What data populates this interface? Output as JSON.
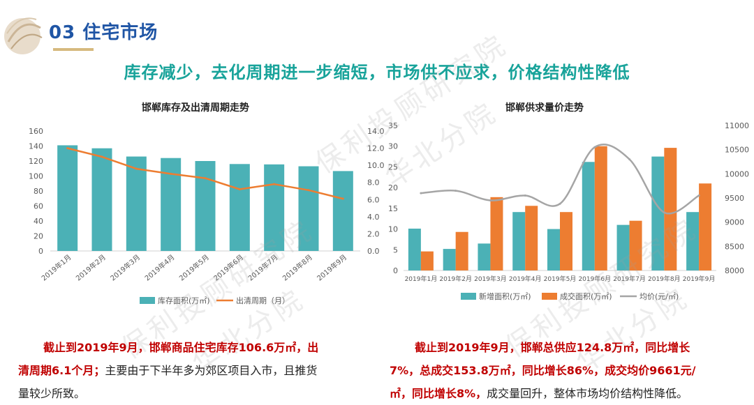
{
  "header": {
    "section_title": "03 住宅市场",
    "headline": "库存减少，去化周期进一步缩短，市场供不应求，价格结构性降低"
  },
  "watermark": {
    "line1": "保利投顾研究院",
    "line2": "华北分院"
  },
  "colors": {
    "teal": "#4bb1b6",
    "orange": "#ed7d31",
    "gray": "#a5a5a5",
    "title_blue": "#1f55a5",
    "headline_green": "#18a39a",
    "highlight_red": "#c00000"
  },
  "chart_data": [
    {
      "type": "bar+line",
      "title": "邯郸库存及出清周期走势",
      "categories": [
        "2019年1月",
        "2019年2月",
        "2019年3月",
        "2019年4月",
        "2019年5月",
        "2019年6月",
        "2019年7月",
        "2019年8月",
        "2019年9月"
      ],
      "series": [
        {
          "name": "库存面积(万㎡)",
          "type": "bar",
          "axis": "left",
          "values": [
            141,
            137,
            126,
            124,
            120,
            116,
            115.5,
            113,
            106.6
          ]
        },
        {
          "name": "出清周期（月）",
          "type": "line",
          "axis": "right",
          "values": [
            12.0,
            11.0,
            9.6,
            9.0,
            8.5,
            7.2,
            7.8,
            7.1,
            6.1
          ]
        }
      ],
      "y_left": {
        "range": [
          0,
          160
        ],
        "ticks": [
          "0",
          "20",
          "40",
          "60",
          "80",
          "100",
          "120",
          "140",
          "160"
        ]
      },
      "y_right": {
        "range": [
          0,
          14
        ],
        "ticks": [
          "0.0",
          "2.0",
          "4.0",
          "6.0",
          "8.0",
          "10.0",
          "12.0",
          "14.0"
        ]
      },
      "grid": false,
      "legend_position": "bottom"
    },
    {
      "type": "bar+line",
      "title": "邯郸供求量价走势",
      "categories": [
        "2019年1月",
        "2019年2月",
        "2019年3月",
        "2019年4月",
        "2019年5月",
        "2019年6月",
        "2019年7月",
        "2019年8月",
        "2019年9月"
      ],
      "series": [
        {
          "name": "新增面积(万㎡)",
          "type": "bar",
          "axis": "left",
          "values": [
            10.1,
            5.2,
            6.5,
            14.1,
            10.0,
            26.2,
            11.0,
            27.5,
            14.1
          ]
        },
        {
          "name": "成交面积(万㎡)",
          "type": "bar",
          "axis": "left",
          "values": [
            4.6,
            9.3,
            17.7,
            15.6,
            14.1,
            30.0,
            12.0,
            29.6,
            21.0
          ]
        },
        {
          "name": "均价(元/㎡)",
          "type": "line",
          "axis": "right",
          "values": [
            9600,
            9650,
            9450,
            9550,
            9380,
            10550,
            10300,
            9200,
            9550
          ]
        }
      ],
      "y_left": {
        "range": [
          0,
          35
        ],
        "ticks": [
          "0",
          "5",
          "10",
          "15",
          "20",
          "25",
          "30",
          "35"
        ]
      },
      "y_right": {
        "range": [
          8000,
          11000
        ],
        "ticks": [
          "8000",
          "8500",
          "9000",
          "9500",
          "10000",
          "10500",
          "11000"
        ]
      },
      "grid": false,
      "legend_position": "bottom"
    }
  ],
  "summary_left": {
    "hl1": "截止到2019年9月，邯郸商品住宅库存106.6万㎡，出",
    "hl2": "清周期6.1个月；",
    "rest": "主要由于下半年多为郊区项目入市，且推货",
    "line3": "量较少所致。"
  },
  "summary_right": {
    "hl1": "截止到2019年9月，邯郸总供应124.8万㎡，同比增长",
    "hl2": "7%，总成交153.8万㎡，同比增长86%，成交均价9661元/",
    "hl3": "㎡，同比增长8%，",
    "rest": "成交量回升，整体市场均价结构性降低。"
  }
}
